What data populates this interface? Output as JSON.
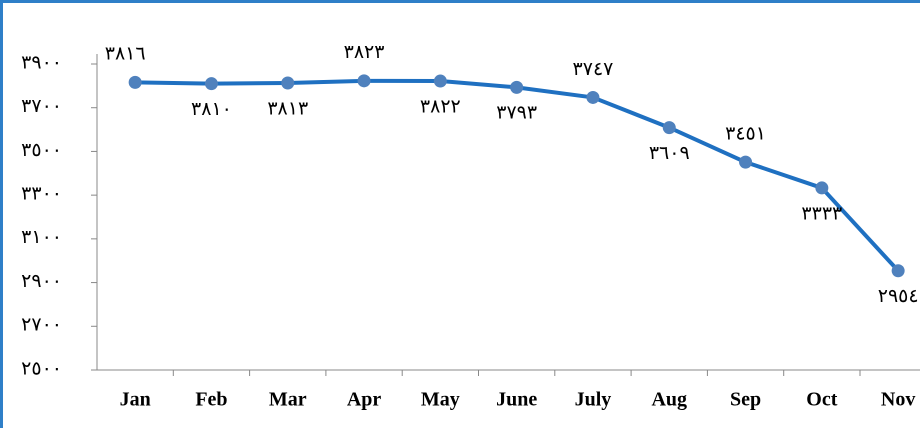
{
  "chart_data": {
    "type": "line",
    "categories": [
      "Jan",
      "Feb",
      "Mar",
      "Apr",
      "May",
      "June",
      "July",
      "Aug",
      "Sep",
      "Oct",
      "Nov"
    ],
    "series": [
      {
        "color": "#1f70c1",
        "marker_color": "#4f81bd",
        "values": [
          3816,
          3810,
          3813,
          3823,
          3822,
          3793,
          3747,
          3609,
          3451,
          3333,
          2954
        ],
        "value_labels": [
          "٣٨١٦",
          "٣٨١٠",
          "٣٨١٣",
          "٣٨٢٣",
          "٣٨٢٢",
          "٣٧٩٣",
          "٣٧٤٧",
          "٣٦٠٩",
          "٣٤٥١",
          "٣٣٣٣",
          "٢٩٥٤"
        ]
      }
    ],
    "ylim": [
      2500,
      3900
    ],
    "yticks": [
      {
        "value": 2500,
        "label": "٢٥٠٠"
      },
      {
        "value": 2700,
        "label": "٢٧٠٠"
      },
      {
        "value": 2900,
        "label": "٢٩٠٠"
      },
      {
        "value": 3100,
        "label": "٣١٠٠"
      },
      {
        "value": 3300,
        "label": "٣٣٠٠"
      },
      {
        "value": 3500,
        "label": "٣٥٠٠"
      },
      {
        "value": 3700,
        "label": "٣٧٠٠"
      },
      {
        "value": 3900,
        "label": "٣٩٠٠"
      }
    ],
    "grid": false
  }
}
